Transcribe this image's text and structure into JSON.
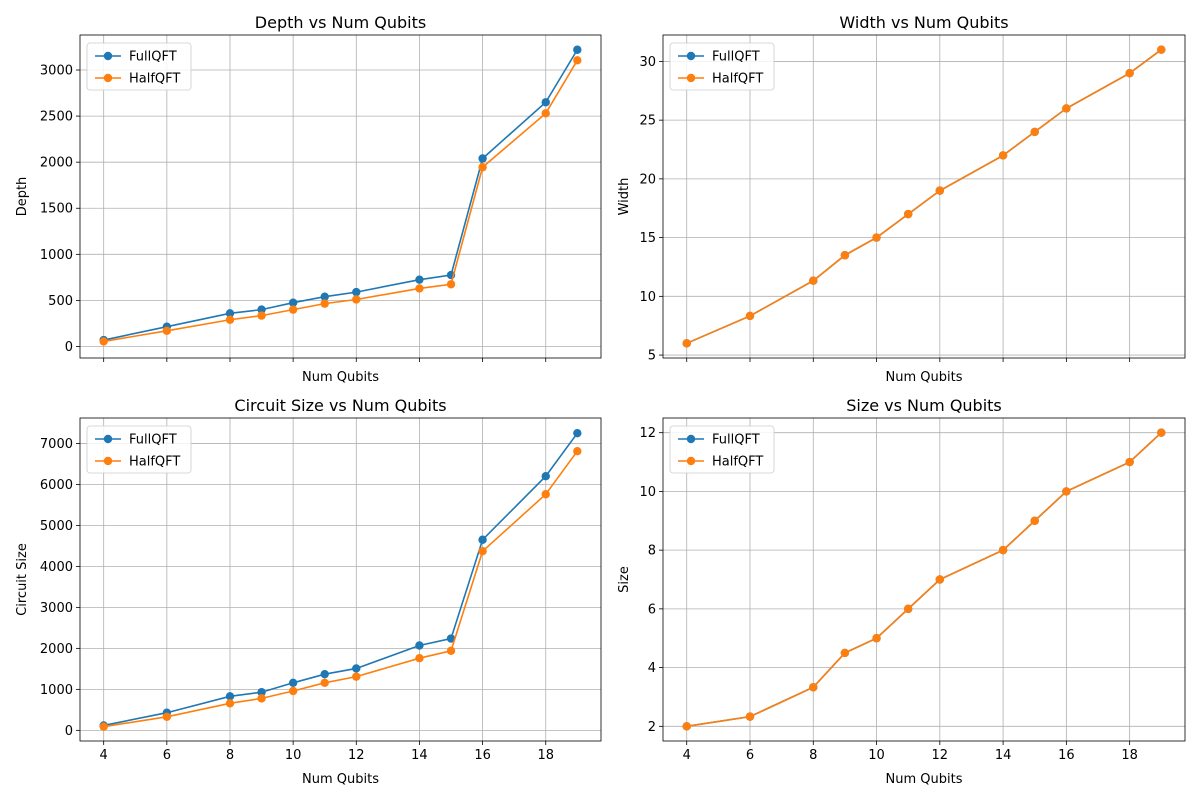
{
  "colors": {
    "FullQFT": "#1f77b4",
    "HalfQFT": "#ff7f0e",
    "grid": "#b0b0b0",
    "axes": "#000000"
  },
  "chart_data": [
    {
      "type": "line",
      "title": "Depth vs Num Qubits",
      "xlabel": "Num Qubits",
      "ylabel": "Depth",
      "x": [
        4,
        6,
        8,
        9,
        10,
        11,
        12,
        14,
        15,
        16,
        18,
        19
      ],
      "xlim": [
        3.25,
        19.75
      ],
      "ylim": [
        -125,
        3380
      ],
      "xticks": [
        4,
        6,
        8,
        10,
        12,
        14,
        16,
        18
      ],
      "show_xtick_labels": false,
      "yticks": [
        0,
        500,
        1000,
        1500,
        2000,
        2500,
        3000
      ],
      "ytick_labels": [
        "0",
        "500",
        "1000",
        "1500",
        "2000",
        "2500",
        "3000"
      ],
      "grid": true,
      "legend": "upper-left",
      "series": [
        {
          "name": "FullQFT",
          "values": [
            70,
            215,
            360,
            400,
            475,
            540,
            590,
            725,
            775,
            2040,
            2650,
            3220
          ]
        },
        {
          "name": "HalfQFT",
          "values": [
            55,
            170,
            290,
            335,
            400,
            465,
            510,
            630,
            675,
            1945,
            2530,
            3105
          ]
        }
      ]
    },
    {
      "type": "line",
      "title": "Width vs Num Qubits",
      "xlabel": "Num Qubits",
      "ylabel": "Width",
      "x": [
        4,
        6,
        8,
        9,
        10,
        11,
        12,
        14,
        15,
        16,
        18,
        19
      ],
      "xlim": [
        3.25,
        19.75
      ],
      "ylim": [
        4.75,
        32.25
      ],
      "xticks": [
        4,
        6,
        8,
        10,
        12,
        14,
        16,
        18
      ],
      "show_xtick_labels": false,
      "yticks": [
        5,
        10,
        15,
        20,
        25,
        30
      ],
      "ytick_labels": [
        "5",
        "10",
        "15",
        "20",
        "25",
        "30"
      ],
      "grid": true,
      "legend": "upper-left",
      "series": [
        {
          "name": "FullQFT",
          "values": [
            6,
            8.33,
            11.33,
            13.5,
            15,
            17,
            19,
            22,
            24,
            26,
            29,
            31
          ]
        },
        {
          "name": "HalfQFT",
          "values": [
            6,
            8.33,
            11.33,
            13.5,
            15,
            17,
            19,
            22,
            24,
            26,
            29,
            31
          ]
        }
      ]
    },
    {
      "type": "line",
      "title": "Circuit Size vs Num Qubits",
      "xlabel": "Num Qubits",
      "ylabel": "Circuit Size",
      "x": [
        4,
        6,
        8,
        9,
        10,
        11,
        12,
        14,
        15,
        16,
        18,
        19
      ],
      "xlim": [
        3.25,
        19.75
      ],
      "ylim": [
        -260,
        7620
      ],
      "xticks": [
        4,
        6,
        8,
        10,
        12,
        14,
        16,
        18
      ],
      "show_xtick_labels": true,
      "yticks": [
        0,
        1000,
        2000,
        3000,
        4000,
        5000,
        6000,
        7000
      ],
      "ytick_labels": [
        "0",
        "1000",
        "2000",
        "3000",
        "4000",
        "5000",
        "6000",
        "7000"
      ],
      "grid": true,
      "legend": "upper-left",
      "series": [
        {
          "name": "FullQFT",
          "values": [
            120,
            430,
            830,
            930,
            1160,
            1370,
            1510,
            2070,
            2240,
            4650,
            6200,
            7250
          ]
        },
        {
          "name": "HalfQFT",
          "values": [
            90,
            330,
            660,
            780,
            960,
            1160,
            1310,
            1760,
            1940,
            4370,
            5760,
            6810
          ]
        }
      ]
    },
    {
      "type": "line",
      "title": "Size vs Num Qubits",
      "xlabel": "Num Qubits",
      "ylabel": "Size",
      "x": [
        4,
        6,
        8,
        9,
        10,
        11,
        12,
        14,
        15,
        16,
        18,
        19
      ],
      "xlim": [
        3.25,
        19.75
      ],
      "ylim": [
        1.5,
        12.5
      ],
      "xticks": [
        4,
        6,
        8,
        10,
        12,
        14,
        16,
        18
      ],
      "show_xtick_labels": true,
      "yticks": [
        2,
        4,
        6,
        8,
        10,
        12
      ],
      "ytick_labels": [
        "2",
        "4",
        "6",
        "8",
        "10",
        "12"
      ],
      "grid": true,
      "legend": "upper-left",
      "series": [
        {
          "name": "FullQFT",
          "values": [
            2,
            2.33,
            3.33,
            4.5,
            5,
            6,
            7,
            8,
            9,
            10,
            11,
            12
          ]
        },
        {
          "name": "HalfQFT",
          "values": [
            2,
            2.33,
            3.33,
            4.5,
            5,
            6,
            7,
            8,
            9,
            10,
            11,
            12
          ]
        }
      ]
    }
  ]
}
